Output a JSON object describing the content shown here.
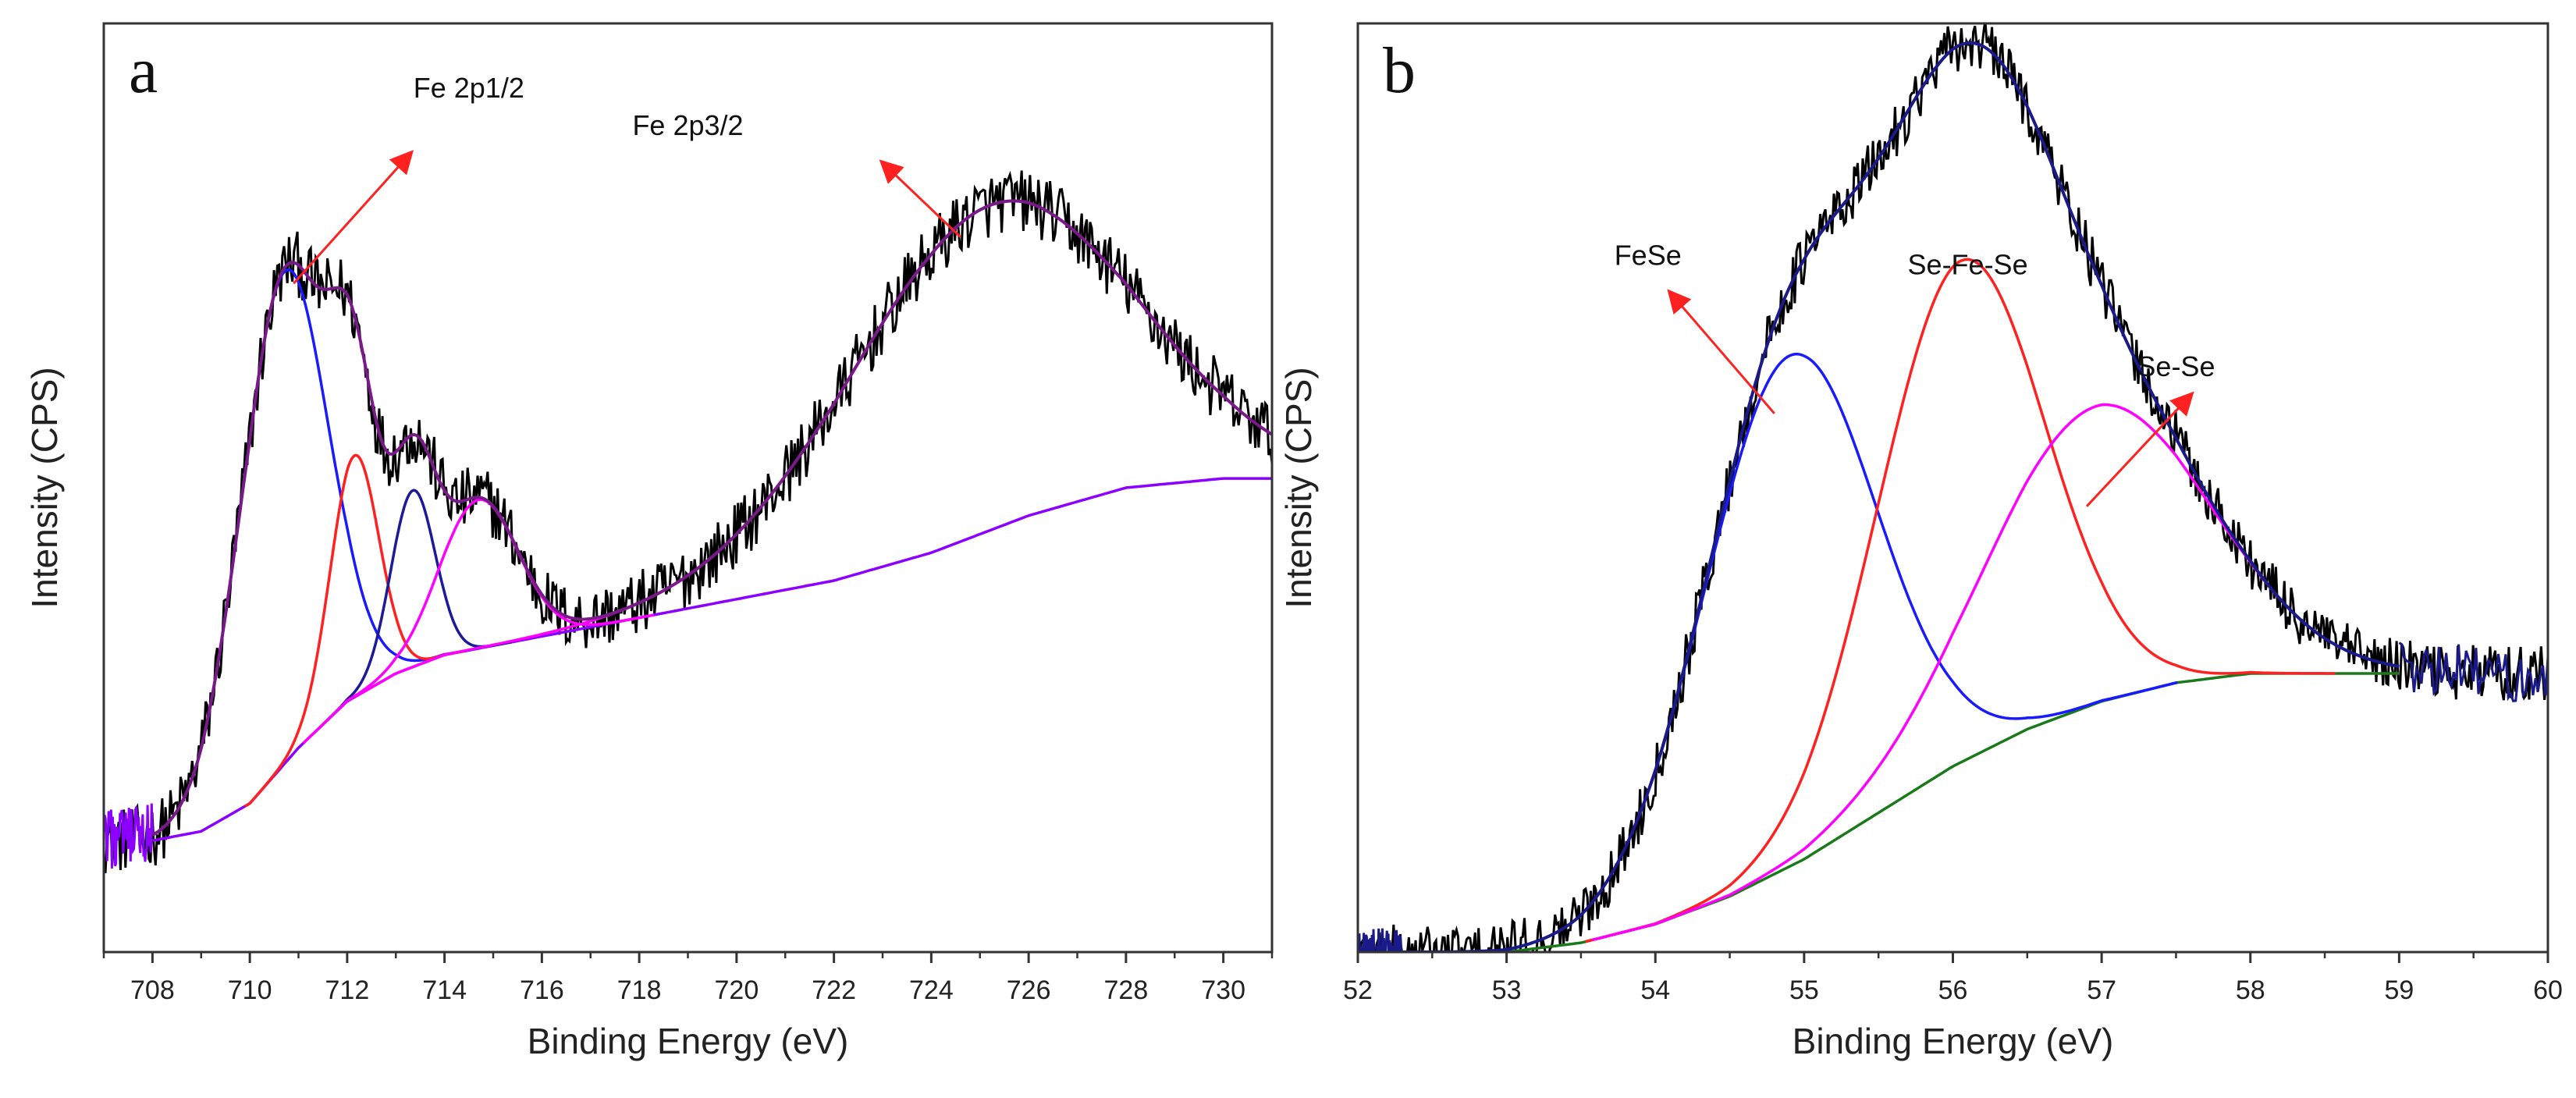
{
  "chart_data": [
    {
      "panel_label": "a",
      "type": "line",
      "title": "",
      "xlabel": "Binding Energy (eV)",
      "ylabel": "Intensity (CPS)",
      "xlim": [
        707,
        731
      ],
      "ylim": [
        0,
        1
      ],
      "x_ticks": [
        708,
        710,
        712,
        714,
        716,
        718,
        720,
        722,
        724,
        726,
        728,
        730
      ],
      "grid": false,
      "background": {
        "name": "Shirley background",
        "color": "#8b00ff",
        "x": [
          708.0,
          709.0,
          710.0,
          711.0,
          712.0,
          713.0,
          714.0,
          715.0,
          716.0,
          718.0,
          720.0,
          722.0,
          724.0,
          726.0,
          728.0,
          730.0,
          731.0
        ],
        "y": [
          0.12,
          0.13,
          0.16,
          0.22,
          0.27,
          0.3,
          0.32,
          0.33,
          0.34,
          0.36,
          0.38,
          0.4,
          0.43,
          0.47,
          0.5,
          0.51,
          0.51
        ]
      },
      "peaks": [
        {
          "name": "peak 1",
          "color": "#1a1aff",
          "center": 710.7,
          "height": 0.53,
          "sigma": 0.9
        },
        {
          "name": "peak 2",
          "color": "#ff2020",
          "center": 712.15,
          "height": 0.26,
          "sigma": 0.5
        },
        {
          "name": "peak 3",
          "color": "#1a1a9a",
          "center": 713.35,
          "height": 0.19,
          "sigma": 0.45
        },
        {
          "name": "peak 4",
          "color": "#ff00ff",
          "center": 714.7,
          "height": 0.16,
          "sigma": 0.8
        },
        {
          "name": "peak 5",
          "color": "#ff00ff",
          "center": 725.2,
          "height": 0.35,
          "sigma": 2.9
        }
      ],
      "envelope_color": "#7a1a8a",
      "raw_color": "#000000",
      "raw_noise": 0.035,
      "raw_range": [
        707.0,
        731.0
      ],
      "tail_noise_color": "#8b00ff",
      "annotations": [
        {
          "text": "Fe 2p1/2",
          "arrow_from": [
            710.9,
            0.72
          ],
          "arrow_to": [
            713.3,
            0.86
          ],
          "text_at": [
            714.5,
            0.92
          ],
          "color": "#ff2020"
        },
        {
          "text": "Fe 2p3/2",
          "arrow_from": [
            724.6,
            0.77
          ],
          "arrow_to": [
            723.0,
            0.85
          ],
          "text_at": [
            719.0,
            0.88
          ],
          "color": "#ff2020"
        }
      ]
    },
    {
      "panel_label": "b",
      "type": "line",
      "title": "",
      "xlabel": "Binding Energy (eV)",
      "ylabel": "Intensity (CPS)",
      "xlim": [
        52,
        60
      ],
      "ylim": [
        0,
        1
      ],
      "x_ticks": [
        52,
        53,
        54,
        55,
        56,
        57,
        58,
        59,
        60
      ],
      "grid": false,
      "background": {
        "name": "Shirley background",
        "color": "#1a7a1a",
        "x": [
          52.3,
          53.0,
          53.5,
          54.0,
          54.5,
          55.0,
          55.5,
          56.0,
          56.5,
          57.0,
          57.5,
          58.0,
          58.5,
          59.0
        ],
        "y": [
          0.0,
          0.0,
          0.01,
          0.03,
          0.06,
          0.1,
          0.15,
          0.2,
          0.24,
          0.27,
          0.29,
          0.3,
          0.3,
          0.3
        ]
      },
      "peaks": [
        {
          "name": "FeSe",
          "color": "#1a1aff",
          "center": 54.9,
          "height": 0.55,
          "sigma": 0.58
        },
        {
          "name": "Se-Fe-Se",
          "color": "#ff2020",
          "center": 56.05,
          "height": 0.54,
          "sigma": 0.56
        },
        {
          "name": "Se-Se",
          "color": "#ff00ff",
          "center": 56.95,
          "height": 0.32,
          "sigma": 0.75
        }
      ],
      "envelope_color": "#1a1a8a",
      "raw_color": "#000000",
      "raw_noise": 0.03,
      "raw_range": [
        52.0,
        60.0
      ],
      "tail_noise_color": "#1a1a8a",
      "annotations": [
        {
          "text": "FeSe",
          "arrow_from": [
            54.8,
            0.58
          ],
          "arrow_to": [
            54.1,
            0.71
          ],
          "text_at": [
            53.95,
            0.74
          ],
          "color": "#ff2020"
        },
        {
          "text": "Se-Fe-Se",
          "arrow_from": null,
          "arrow_to": null,
          "text_at": [
            56.1,
            0.73
          ],
          "color": "#ff2020"
        },
        {
          "text": "Se-Se",
          "arrow_from": [
            56.9,
            0.48
          ],
          "arrow_to": [
            57.6,
            0.6
          ],
          "text_at": [
            57.5,
            0.62
          ],
          "color": "#ff2020"
        }
      ]
    }
  ]
}
